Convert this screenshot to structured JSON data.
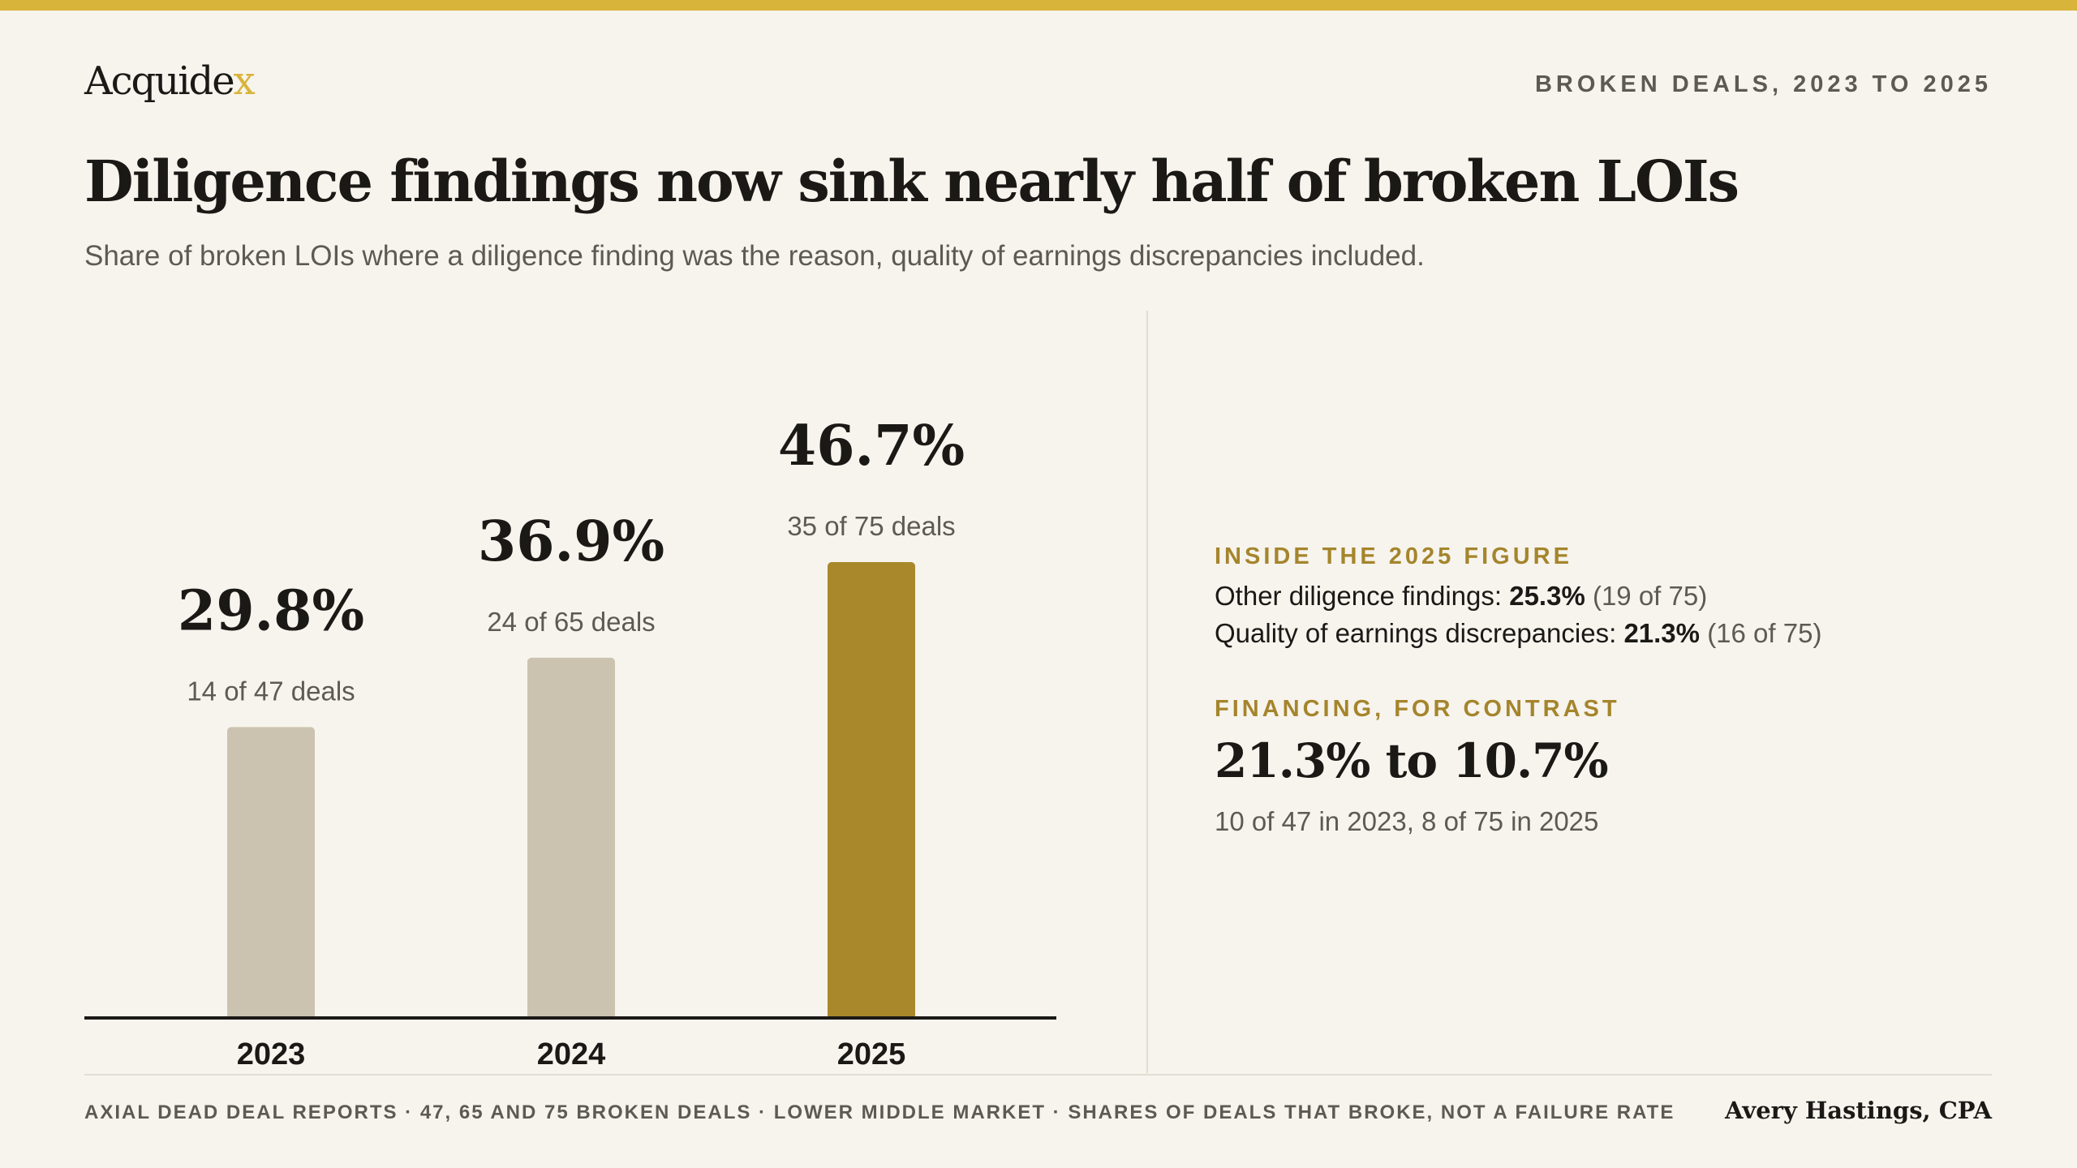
{
  "brand": {
    "logo_main": "Acquide",
    "logo_accent": "x"
  },
  "kicker": "BROKEN DEALS, 2023 TO 2025",
  "title": "Diligence findings now sink nearly half of broken LOIs",
  "subtitle": "Share of broken LOIs where a diligence finding was the reason, quality of earnings discrepancies included.",
  "colors": {
    "accent": "#d9b43a",
    "highlight_bar": "#a8882a",
    "muted_bar": "#cbc3b0",
    "label_gold": "#a5852c"
  },
  "chart_data": {
    "type": "bar",
    "title": "Diligence findings now sink nearly half of broken LOIs",
    "categories": [
      "2023",
      "2024",
      "2025"
    ],
    "values": [
      29.8,
      36.9,
      46.7
    ],
    "value_labels": [
      "29.8%",
      "36.9%",
      "46.7%"
    ],
    "sublabels": [
      "14 of 47 deals",
      "24 of 65 deals",
      "35 of 75 deals"
    ],
    "highlight_index": 2,
    "ylim": [
      0,
      60
    ],
    "grid": false,
    "legend": "none"
  },
  "side": {
    "inside_label": "INSIDE THE 2025 FIGURE",
    "line1": {
      "label": "Other diligence findings: ",
      "value": "25.3%",
      "detail": "(19 of 75)"
    },
    "line2": {
      "label": "Quality of earnings discrepancies: ",
      "value": "21.3%",
      "detail": "(16 of 75)"
    },
    "financing_label": "FINANCING, FOR CONTRAST",
    "financing_range": "21.3% to 10.7%",
    "financing_note": "10 of 47 in 2023, 8 of 75 in 2025"
  },
  "footer": {
    "source": "AXIAL DEAD DEAL REPORTS · 47, 65 AND 75 BROKEN DEALS · LOWER MIDDLE MARKET · SHARES OF DEALS THAT BROKE, NOT A FAILURE RATE",
    "byline": "Avery Hastings, CPA"
  }
}
